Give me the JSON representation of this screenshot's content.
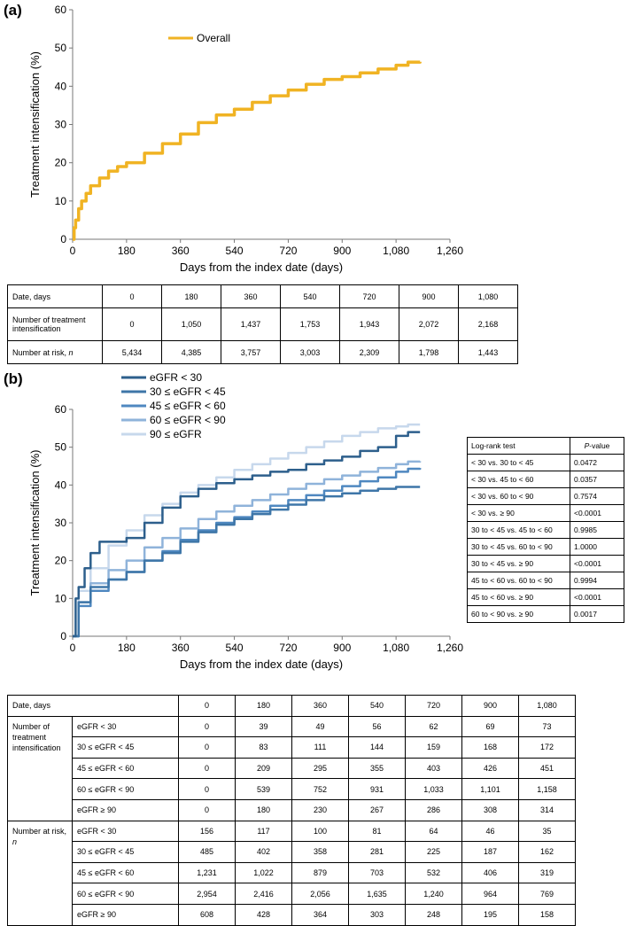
{
  "panel_a_label": "(a)",
  "panel_b_label": "(b)",
  "chart_data": [
    {
      "type": "line",
      "panel": "a",
      "title": "",
      "xlabel": "Days from the index date (days)",
      "ylabel": "Treatment intensification (%)",
      "xlim": [
        0,
        1260
      ],
      "ylim": [
        0,
        60
      ],
      "xticks": [
        0,
        180,
        360,
        540,
        720,
        900,
        1080,
        1260
      ],
      "xtick_labels": [
        "0",
        "180",
        "360",
        "540",
        "720",
        "900",
        "1,080",
        "1,260"
      ],
      "yticks": [
        0,
        10,
        20,
        30,
        40,
        50,
        60
      ],
      "ytick_labels": [
        "0",
        "10",
        "20",
        "30",
        "40",
        "50",
        "60"
      ],
      "legend_position": "top-center",
      "series": [
        {
          "name": "Overall",
          "color": "#f0b323",
          "x": [
            0,
            5,
            10,
            20,
            30,
            45,
            60,
            90,
            120,
            150,
            180,
            240,
            300,
            360,
            420,
            480,
            540,
            600,
            660,
            720,
            780,
            840,
            900,
            960,
            1020,
            1080,
            1120,
            1160
          ],
          "y": [
            0,
            3,
            5,
            8,
            10,
            12,
            14,
            16,
            17.8,
            19,
            20,
            22.5,
            25,
            27.5,
            30.5,
            32.5,
            34,
            35.8,
            37.5,
            39,
            40.5,
            41.8,
            42.5,
            43.5,
            44.5,
            45.5,
            46.3,
            46.4
          ]
        }
      ]
    },
    {
      "type": "line",
      "panel": "b",
      "title": "",
      "xlabel": "Days from the index date (days)",
      "ylabel": "Treatment intensification (%)",
      "xlim": [
        0,
        1260
      ],
      "ylim": [
        0,
        60
      ],
      "xticks": [
        0,
        180,
        360,
        540,
        720,
        900,
        1080,
        1260
      ],
      "xtick_labels": [
        "0",
        "180",
        "360",
        "540",
        "720",
        "900",
        "1,080",
        "1,260"
      ],
      "yticks": [
        0,
        10,
        20,
        30,
        40,
        50,
        60
      ],
      "ytick_labels": [
        "0",
        "10",
        "20",
        "30",
        "40",
        "50",
        "60"
      ],
      "legend_position": "top-left",
      "series": [
        {
          "name": "eGFR < 30",
          "color": "#2d5f8c",
          "x": [
            0,
            10,
            20,
            40,
            60,
            90,
            120,
            180,
            240,
            300,
            360,
            420,
            480,
            540,
            600,
            660,
            720,
            780,
            840,
            900,
            960,
            1020,
            1080,
            1120,
            1160
          ],
          "y": [
            0,
            10,
            13,
            18,
            22,
            25,
            25,
            26,
            30,
            34,
            37,
            39,
            40.5,
            41.5,
            42.5,
            43.5,
            44,
            45.5,
            46.5,
            47.5,
            49,
            50,
            53,
            54,
            54
          ]
        },
        {
          "name": "30 ≤ eGFR < 45",
          "color": "#3e76a8",
          "x": [
            0,
            20,
            60,
            120,
            180,
            240,
            300,
            360,
            420,
            480,
            540,
            600,
            660,
            720,
            780,
            840,
            900,
            960,
            1020,
            1080,
            1120,
            1160
          ],
          "y": [
            0,
            9,
            13,
            15,
            17,
            20,
            22,
            25,
            27.5,
            29.5,
            31,
            32.3,
            33.5,
            34.8,
            36,
            37,
            37.8,
            38.5,
            39,
            39.5,
            39.5,
            39.5
          ]
        },
        {
          "name": "45 ≤ eGFR < 60",
          "color": "#4f88c0",
          "x": [
            0,
            20,
            60,
            120,
            180,
            240,
            300,
            360,
            420,
            480,
            540,
            600,
            660,
            720,
            780,
            840,
            900,
            960,
            1020,
            1080,
            1120,
            1160
          ],
          "y": [
            0,
            8,
            12,
            15,
            17,
            20,
            22.5,
            25.5,
            28,
            30,
            31.5,
            33,
            34.5,
            36,
            37.3,
            38.5,
            39.7,
            41,
            42,
            43.5,
            44.3,
            44.5
          ]
        },
        {
          "name": "60 ≤ eGFR < 90",
          "color": "#8fb3da",
          "x": [
            0,
            20,
            60,
            120,
            180,
            240,
            300,
            360,
            420,
            480,
            540,
            600,
            660,
            720,
            780,
            840,
            900,
            960,
            1020,
            1080,
            1120,
            1160
          ],
          "y": [
            0,
            9,
            14,
            17.5,
            20,
            23.5,
            26,
            28.5,
            31,
            33,
            34.5,
            36,
            37.5,
            39,
            40.3,
            41.5,
            42.5,
            43.5,
            44.5,
            45.5,
            46.2,
            46.3
          ]
        },
        {
          "name": "90 ≤ eGFR",
          "color": "#c7d8ec",
          "x": [
            0,
            20,
            60,
            120,
            180,
            240,
            300,
            360,
            420,
            480,
            540,
            600,
            660,
            720,
            780,
            840,
            900,
            960,
            1020,
            1080,
            1120,
            1160
          ],
          "y": [
            0,
            12,
            18,
            24,
            28,
            32,
            35,
            38,
            40,
            42,
            44,
            45.5,
            47,
            48.5,
            50,
            51.5,
            53,
            54,
            55,
            55.5,
            56,
            56
          ]
        }
      ]
    }
  ],
  "table_a": {
    "row_labels": [
      "Date, days",
      "Number of treatment intensification",
      "Number at risk,"
    ],
    "row_label_italic_suffix": "n",
    "date": [
      "0",
      "180",
      "360",
      "540",
      "720",
      "900",
      "1,080"
    ],
    "intensification": [
      "0",
      "1,050",
      "1,437",
      "1,753",
      "1,943",
      "2,072",
      "2,168"
    ],
    "at_risk": [
      "5,434",
      "4,385",
      "3,757",
      "3,003",
      "2,309",
      "1,798",
      "1,443"
    ]
  },
  "table_b": {
    "header_label": "Date, days",
    "dates": [
      "0",
      "180",
      "360",
      "540",
      "720",
      "900",
      "1,080"
    ],
    "group_intensification_label": "Number of treatment intensification",
    "group_at_risk_label": "Number at risk,",
    "group_at_risk_italic": "n",
    "intensification_rows": [
      {
        "label": "eGFR < 30",
        "values": [
          "0",
          "39",
          "49",
          "56",
          "62",
          "69",
          "73"
        ]
      },
      {
        "label": "30 ≤ eGFR < 45",
        "values": [
          "0",
          "83",
          "111",
          "144",
          "159",
          "168",
          "172"
        ]
      },
      {
        "label": "45 ≤ eGFR < 60",
        "values": [
          "0",
          "209",
          "295",
          "355",
          "403",
          "426",
          "451"
        ]
      },
      {
        "label": "60 ≤ eGFR < 90",
        "values": [
          "0",
          "539",
          "752",
          "931",
          "1,033",
          "1,101",
          "1,158"
        ]
      },
      {
        "label": "eGFR ≥ 90",
        "values": [
          "0",
          "180",
          "230",
          "267",
          "286",
          "308",
          "314"
        ]
      }
    ],
    "at_risk_rows": [
      {
        "label": "eGFR < 30",
        "values": [
          "156",
          "117",
          "100",
          "81",
          "64",
          "46",
          "35"
        ]
      },
      {
        "label": "30 ≤ eGFR < 45",
        "values": [
          "485",
          "402",
          "358",
          "281",
          "225",
          "187",
          "162"
        ]
      },
      {
        "label": "45 ≤ eGFR < 60",
        "values": [
          "1,231",
          "1,022",
          "879",
          "703",
          "532",
          "406",
          "319"
        ]
      },
      {
        "label": "60 ≤ eGFR < 90",
        "values": [
          "2,954",
          "2,416",
          "2,056",
          "1,635",
          "1,240",
          "964",
          "769"
        ]
      },
      {
        "label": "eGFR ≥ 90",
        "values": [
          "608",
          "428",
          "364",
          "303",
          "248",
          "195",
          "158"
        ]
      }
    ]
  },
  "logrank_table": {
    "header_test": "Log-rank test",
    "header_p_italic": "P",
    "header_p_rest": "-value",
    "rows": [
      {
        "test": "< 30 vs. 30 to < 45",
        "p": "0.0472"
      },
      {
        "test": "< 30 vs. 45 to < 60",
        "p": "0.0357"
      },
      {
        "test": "< 30 vs. 60 to < 90",
        "p": "0.7574"
      },
      {
        "test": "< 30 vs. ≥ 90",
        "p": "<0.0001"
      },
      {
        "test": "30 to < 45 vs. 45 to < 60",
        "p": "0.9985"
      },
      {
        "test": "30 to < 45 vs. 60 to < 90",
        "p": "1.0000"
      },
      {
        "test": "30 to < 45 vs. ≥ 90",
        "p": "<0.0001"
      },
      {
        "test": "45 to < 60 vs. 60 to < 90",
        "p": "0.9994"
      },
      {
        "test": "45 to < 60 vs. ≥ 90",
        "p": "<0.0001"
      },
      {
        "test": "60 to < 90 vs. ≥ 90",
        "p": "0.0017"
      }
    ]
  }
}
